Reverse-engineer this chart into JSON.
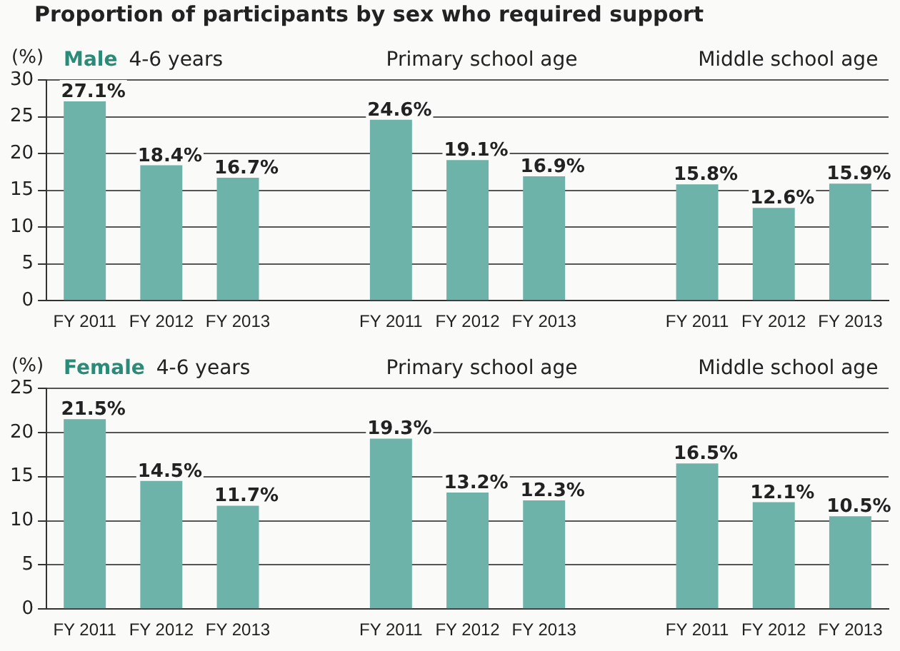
{
  "chart_data": [
    {
      "type": "bar",
      "title": "Proportion of participants by sex who required support",
      "subtitle": "Male",
      "ylabel": "(%)",
      "annotations": [
        "4-6 years",
        "Primary school age",
        "Middle school age"
      ],
      "categories": [
        "FY 2011",
        "FY 2012",
        "FY 2013",
        null,
        "FY 2011",
        "FY 2012",
        "FY 2013",
        null,
        "FY 2011",
        "FY 2012",
        "FY 2013"
      ],
      "values": [
        27.1,
        18.4,
        16.7,
        null,
        24.6,
        19.1,
        16.9,
        null,
        15.8,
        12.6,
        15.9
      ],
      "value_labels": [
        "27.1%",
        "18.4%",
        "16.7%",
        null,
        "24.6%",
        "19.1%",
        "16.9%",
        null,
        "15.8%",
        "12.6%",
        "15.9%"
      ],
      "color": "#6db3a9",
      "ylim": [
        0,
        30
      ],
      "yticks": [
        0,
        5,
        10,
        15,
        20,
        25,
        30
      ],
      "grid": "y"
    },
    {
      "type": "bar",
      "subtitle": "Female",
      "ylabel": "(%)",
      "annotations": [
        "4-6 years",
        "Primary school age",
        "Middle school age"
      ],
      "categories": [
        "FY 2011",
        "FY 2012",
        "FY 2013",
        null,
        "FY 2011",
        "FY 2012",
        "FY 2013",
        null,
        "FY 2011",
        "FY 2012",
        "FY 2013"
      ],
      "values": [
        21.5,
        14.5,
        11.7,
        null,
        19.3,
        13.2,
        12.3,
        null,
        16.5,
        12.1,
        10.5
      ],
      "value_labels": [
        "21.5%",
        "14.5%",
        "11.7%",
        null,
        "19.3%",
        "13.2%",
        "12.3%",
        null,
        "16.5%",
        "12.1%",
        "10.5%"
      ],
      "color": "#6db3a9",
      "ylim": [
        0,
        25
      ],
      "yticks": [
        0,
        5,
        10,
        15,
        20,
        25
      ],
      "grid": "y"
    }
  ]
}
